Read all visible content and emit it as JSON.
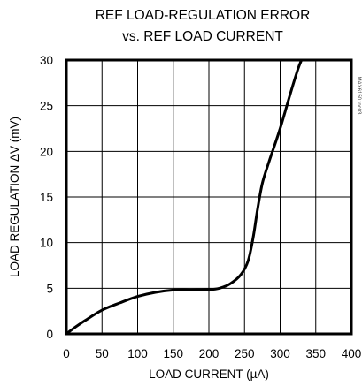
{
  "chart_data": {
    "type": "line",
    "title_line1": "REF LOAD-REGULATION ERROR",
    "title_line2": "vs. REF LOAD CURRENT",
    "xlabel": "LOAD CURRENT (µA)",
    "ylabel": "LOAD REGULATION ΔV (mV)",
    "xlim": [
      0,
      400
    ],
    "ylim": [
      0,
      30
    ],
    "x_ticks": [
      0,
      50,
      100,
      150,
      200,
      250,
      300,
      350,
      400
    ],
    "x_tick_labels": [
      "0",
      "50",
      "100",
      "150",
      "200",
      "250",
      "300",
      "350",
      "400"
    ],
    "y_ticks": [
      0,
      5,
      10,
      15,
      20,
      25,
      30
    ],
    "y_tick_labels": [
      "0",
      "5",
      "10",
      "15",
      "20",
      "25",
      "30"
    ],
    "grid": true,
    "watermark": "MAX6150 toc03",
    "series": [
      {
        "x": [
          0,
          10,
          25,
          50,
          75,
          100,
          125,
          150,
          175,
          200,
          215,
          230,
          245,
          255,
          262,
          268,
          275,
          285,
          300,
          315,
          325,
          330
        ],
        "y": [
          0,
          0.6,
          1.4,
          2.6,
          3.4,
          4.1,
          4.55,
          4.8,
          4.82,
          4.85,
          5.0,
          5.5,
          6.5,
          8.0,
          10.5,
          13.5,
          16.5,
          19.0,
          22.5,
          26.5,
          29.0,
          30.0
        ]
      }
    ]
  }
}
